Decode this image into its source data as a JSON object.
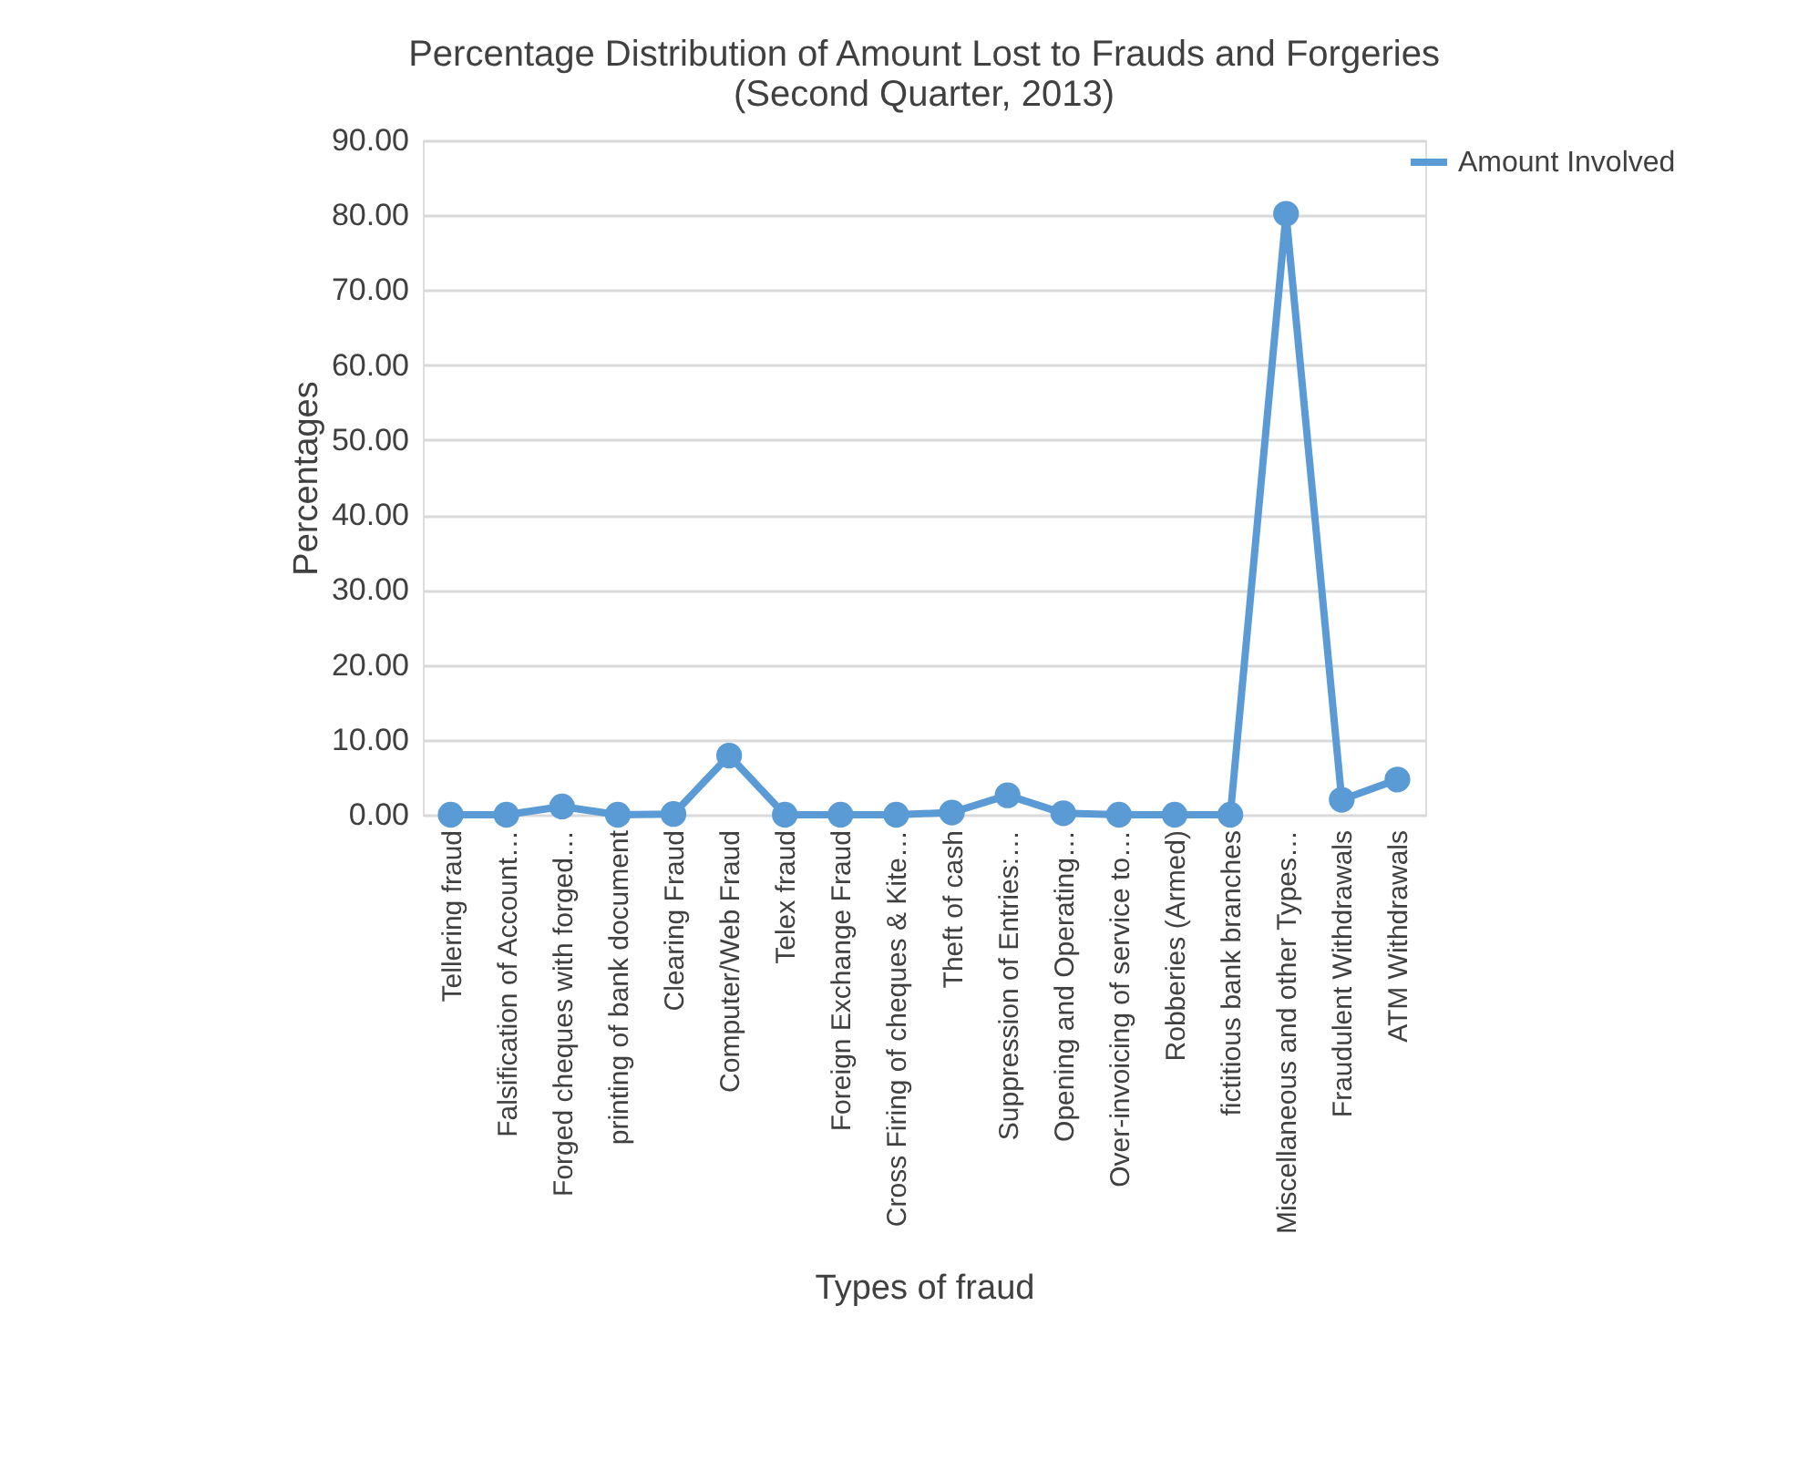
{
  "chart_data": {
    "type": "line",
    "title": [
      "Percentage Distribution of Amount Lost to Frauds and Forgeries",
      "(Second Quarter, 2013)"
    ],
    "xlabel": "Types of fraud",
    "ylabel": "Percentages",
    "categories": [
      "Tellering fraud",
      "Falsification of Account…",
      "Forged cheques with forged…",
      "printing of bank document",
      "Clearing Fraud",
      "Computer/Web Fraud",
      "Telex fraud",
      "Foreign Exchange Fraud",
      "Cross Firing of cheques & Kite…",
      "Theft of cash",
      "Suppression of Entries:…",
      "Opening and Operating…",
      "Over-invoicing of service to…",
      "Robberies (Armed)",
      "fictitious bank branches",
      "Miscellaneous and other Types…",
      "Fraudulent Withdrawals",
      "ATM Withdrawals"
    ],
    "series": [
      {
        "name": "Amount Involved",
        "color": "#5b9bd5",
        "values": [
          0,
          0,
          1.1,
          0,
          0.1,
          7.9,
          0,
          0,
          0,
          0.3,
          2.6,
          0.2,
          0,
          0,
          0,
          80.2,
          2.0,
          4.7
        ]
      }
    ],
    "ylim": [
      0,
      90
    ],
    "yticks": [
      {
        "value": 0,
        "label": "0.00"
      },
      {
        "value": 10,
        "label": "10.00"
      },
      {
        "value": 20,
        "label": "20.00"
      },
      {
        "value": 30,
        "label": "30.00"
      },
      {
        "value": 40,
        "label": "40.00"
      },
      {
        "value": 50,
        "label": "50.00"
      },
      {
        "value": 60,
        "label": "60.00"
      },
      {
        "value": 70,
        "label": "70.00"
      },
      {
        "value": 80,
        "label": "80.00"
      },
      {
        "value": 90,
        "label": "90.00"
      }
    ],
    "grid": "y",
    "legend": "right",
    "marker": "circle",
    "line_style": "solid"
  }
}
